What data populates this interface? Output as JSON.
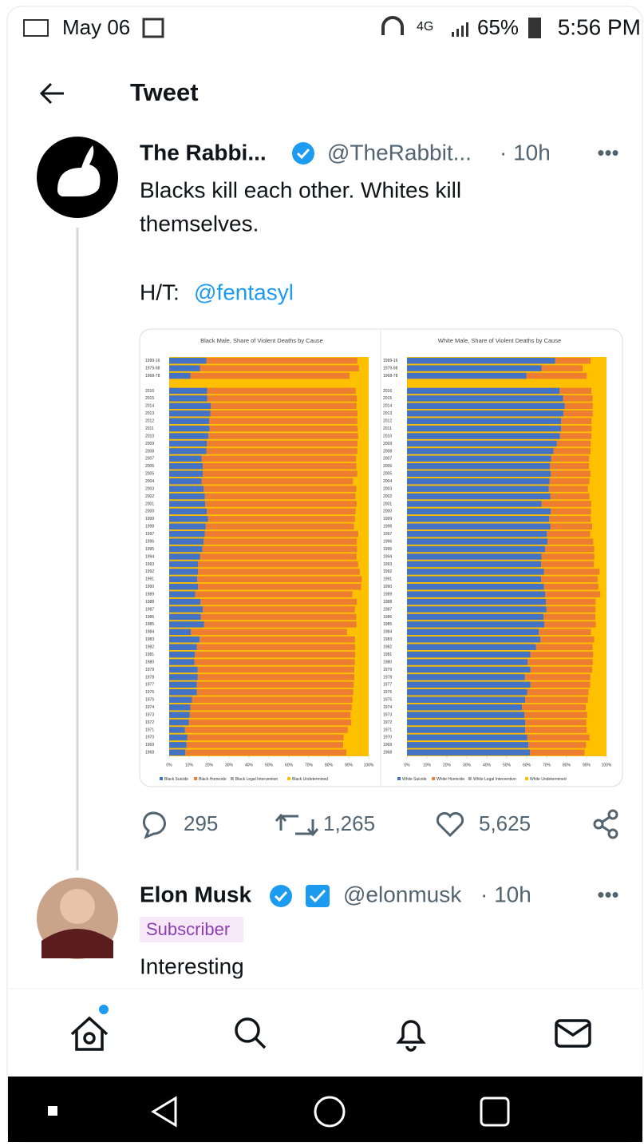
{
  "status_bar": {
    "date": "May 06",
    "network": "4G",
    "battery": "65%",
    "time": "5:56 PM"
  },
  "header": {
    "title": "Tweet"
  },
  "tweet": {
    "name": "The Rabbi...",
    "handle": "@TheRabbit...",
    "time": "· 10h",
    "text_lines": [
      "Blacks kill each other. Whites kill",
      "themselves."
    ],
    "ht": "H/T:",
    "mention": "@fentasyl",
    "replies": "295",
    "retweets": "1,265",
    "likes": "5,625"
  },
  "chart_data": [
    {
      "type": "bar",
      "orientation": "horizontal",
      "stacked": true,
      "title": "Black Male, Share of Violent Deaths by Cause",
      "categories": [
        "1999-16",
        "1979-98",
        "1968-78",
        "2016",
        "2015",
        "2014",
        "2013",
        "2012",
        "2011",
        "2010",
        "2009",
        "2008",
        "2007",
        "2006",
        "2005",
        "2004",
        "2003",
        "2002",
        "2001",
        "2000",
        "1999",
        "1998",
        "1997",
        "1996",
        "1995",
        "1994",
        "1993",
        "1992",
        "1991",
        "1990",
        "1989",
        "1988",
        "1987",
        "1986",
        "1985",
        "1984",
        "1983",
        "1982",
        "1981",
        "1980",
        "1979",
        "1978",
        "1977",
        "1976",
        "1975",
        "1974",
        "1973",
        "1972",
        "1971",
        "1970",
        "1969",
        "1968"
      ],
      "series": [
        {
          "name": "Black Suicide",
          "color": "#4472c4",
          "values": [
            18.7,
            15.4,
            10.6,
            19.0,
            19.0,
            20.9,
            20.7,
            20.0,
            20.2,
            19.6,
            18.9,
            18.6,
            16.3,
            16.8,
            16.9,
            16.2,
            17.2,
            17.9,
            18.1,
            18.9,
            19.4,
            18.3,
            17.8,
            17.3,
            16.6,
            15.5,
            14.5,
            14.5,
            14.0,
            14.4,
            13.0,
            15.7,
            16.8,
            15.9,
            17.4,
            10.9,
            15.3,
            13.8,
            12.9,
            12.6,
            14.3,
            14.3,
            13.9,
            13.9,
            11.4,
            10.7,
            10.3,
            9.8,
            7.9,
            9.1,
            8.6,
            8.1
          ]
        },
        {
          "name": "Black Homicide",
          "color": "#ed7d31",
          "values": [
            75.6,
            79.7,
            79.8,
            74.5,
            75.1,
            73.0,
            73.7,
            74.3,
            74.3,
            75.1,
            75.5,
            75.7,
            77.4,
            77.0,
            77.4,
            75.9,
            76.6,
            75.5,
            75.9,
            74.6,
            73.7,
            74.3,
            77.0,
            76.8,
            77.6,
            78.4,
            80.2,
            81.0,
            82.5,
            81.8,
            78.8,
            78.4,
            76.3,
            77.9,
            76.5,
            78.2,
            77.8,
            79.4,
            80.3,
            80.5,
            78.5,
            78.5,
            78.6,
            78.3,
            80.5,
            80.8,
            80.6,
            81.5,
            81.6,
            78.3,
            78.6,
            80.7
          ]
        }
      ],
      "other_legend": [
        {
          "name": "Black Legal Intervention",
          "color": "#a5a5a5"
        },
        {
          "name": "Black Undetermined",
          "color": "#ffc000"
        }
      ],
      "xlim": [
        0,
        100
      ],
      "xticks": [
        {
          "value": 0,
          "label": "0%"
        },
        {
          "value": 10,
          "label": "10%"
        },
        {
          "value": 20,
          "label": "20%"
        },
        {
          "value": 30,
          "label": "30%"
        },
        {
          "value": 40,
          "label": "40%"
        },
        {
          "value": 50,
          "label": "50%"
        },
        {
          "value": 60,
          "label": "60%"
        },
        {
          "value": 70,
          "label": "70%"
        },
        {
          "value": 80,
          "label": "80%"
        },
        {
          "value": 90,
          "label": "90%"
        },
        {
          "value": 100,
          "label": "100%"
        }
      ]
    },
    {
      "type": "bar",
      "orientation": "horizontal",
      "stacked": true,
      "title": "White Male, Share of Violent Deaths by Cause",
      "categories": [
        "1999-16",
        "1979-98",
        "1968-78",
        "2016",
        "2015",
        "2014",
        "2013",
        "2012",
        "2011",
        "2010",
        "2009",
        "2008",
        "2007",
        "2006",
        "2005",
        "2004",
        "2003",
        "2002",
        "2001",
        "2000",
        "1999",
        "1998",
        "1997",
        "1996",
        "1995",
        "1994",
        "1993",
        "1992",
        "1991",
        "1990",
        "1989",
        "1988",
        "1987",
        "1986",
        "1985",
        "1984",
        "1983",
        "1982",
        "1981",
        "1980",
        "1979",
        "1978",
        "1977",
        "1976",
        "1975",
        "1974",
        "1973",
        "1972",
        "1971",
        "1970",
        "1969",
        "1968"
      ],
      "series": [
        {
          "name": "White Suicide",
          "color": "#4472c4",
          "values": [
            74.3,
            67.4,
            59.8,
            76.5,
            78.2,
            79.1,
            78.5,
            77.3,
            77.2,
            76.6,
            75.1,
            73.4,
            72.2,
            71.6,
            72.1,
            71.5,
            71.0,
            71.8,
            67.4,
            72.1,
            71.3,
            71.8,
            70.1,
            70.4,
            69.2,
            67.4,
            67.3,
            68.7,
            67.2,
            68.7,
            69.2,
            69.6,
            69.9,
            68.5,
            68.8,
            66.1,
            66.8,
            64.6,
            61.8,
            60.5,
            61.9,
            59.1,
            61.9,
            60.3,
            59.2,
            57.6,
            58.8,
            59.2,
            59.2,
            60.3,
            60.9,
            61.6
          ]
        },
        {
          "name": "White Homicide",
          "color": "#ed7d31",
          "values": [
            17.8,
            20.6,
            30.3,
            15.9,
            14.8,
            14.0,
            14.6,
            15.2,
            15.3,
            15.8,
            17.0,
            18.6,
            19.1,
            19.6,
            19.8,
            19.9,
            19.7,
            19.6,
            24.9,
            20.1,
            20.8,
            21.0,
            21.7,
            22.9,
            24.6,
            26.5,
            26.4,
            27.8,
            28.3,
            27.2,
            27.7,
            24.9,
            24.6,
            25.9,
            25.8,
            26.1,
            27.0,
            28.4,
            31.5,
            32.6,
            30.9,
            32.8,
            29.9,
            30.7,
            31.5,
            32.0,
            31.5,
            30.7,
            30.9,
            31.1,
            28.8,
            27.4
          ]
        }
      ],
      "other_legend": [
        {
          "name": "White Legal Intervention",
          "color": "#a5a5a5"
        },
        {
          "name": "White Undetermined",
          "color": "#ffc000"
        }
      ],
      "xlim": [
        0,
        100
      ],
      "xticks": [
        {
          "value": 0,
          "label": "0%"
        },
        {
          "value": 10,
          "label": "10%"
        },
        {
          "value": 20,
          "label": "20%"
        },
        {
          "value": 30,
          "label": "30%"
        },
        {
          "value": 40,
          "label": "40%"
        },
        {
          "value": 50,
          "label": "50%"
        },
        {
          "value": 60,
          "label": "60%"
        },
        {
          "value": 70,
          "label": "70%"
        },
        {
          "value": 80,
          "label": "80%"
        },
        {
          "value": 90,
          "label": "90%"
        },
        {
          "value": 100,
          "label": "100%"
        }
      ]
    }
  ],
  "reply": {
    "name": "Elon Musk",
    "handle": "@elonmusk",
    "time": "· 10h",
    "badge": "Subscriber",
    "text": "Interesting"
  }
}
